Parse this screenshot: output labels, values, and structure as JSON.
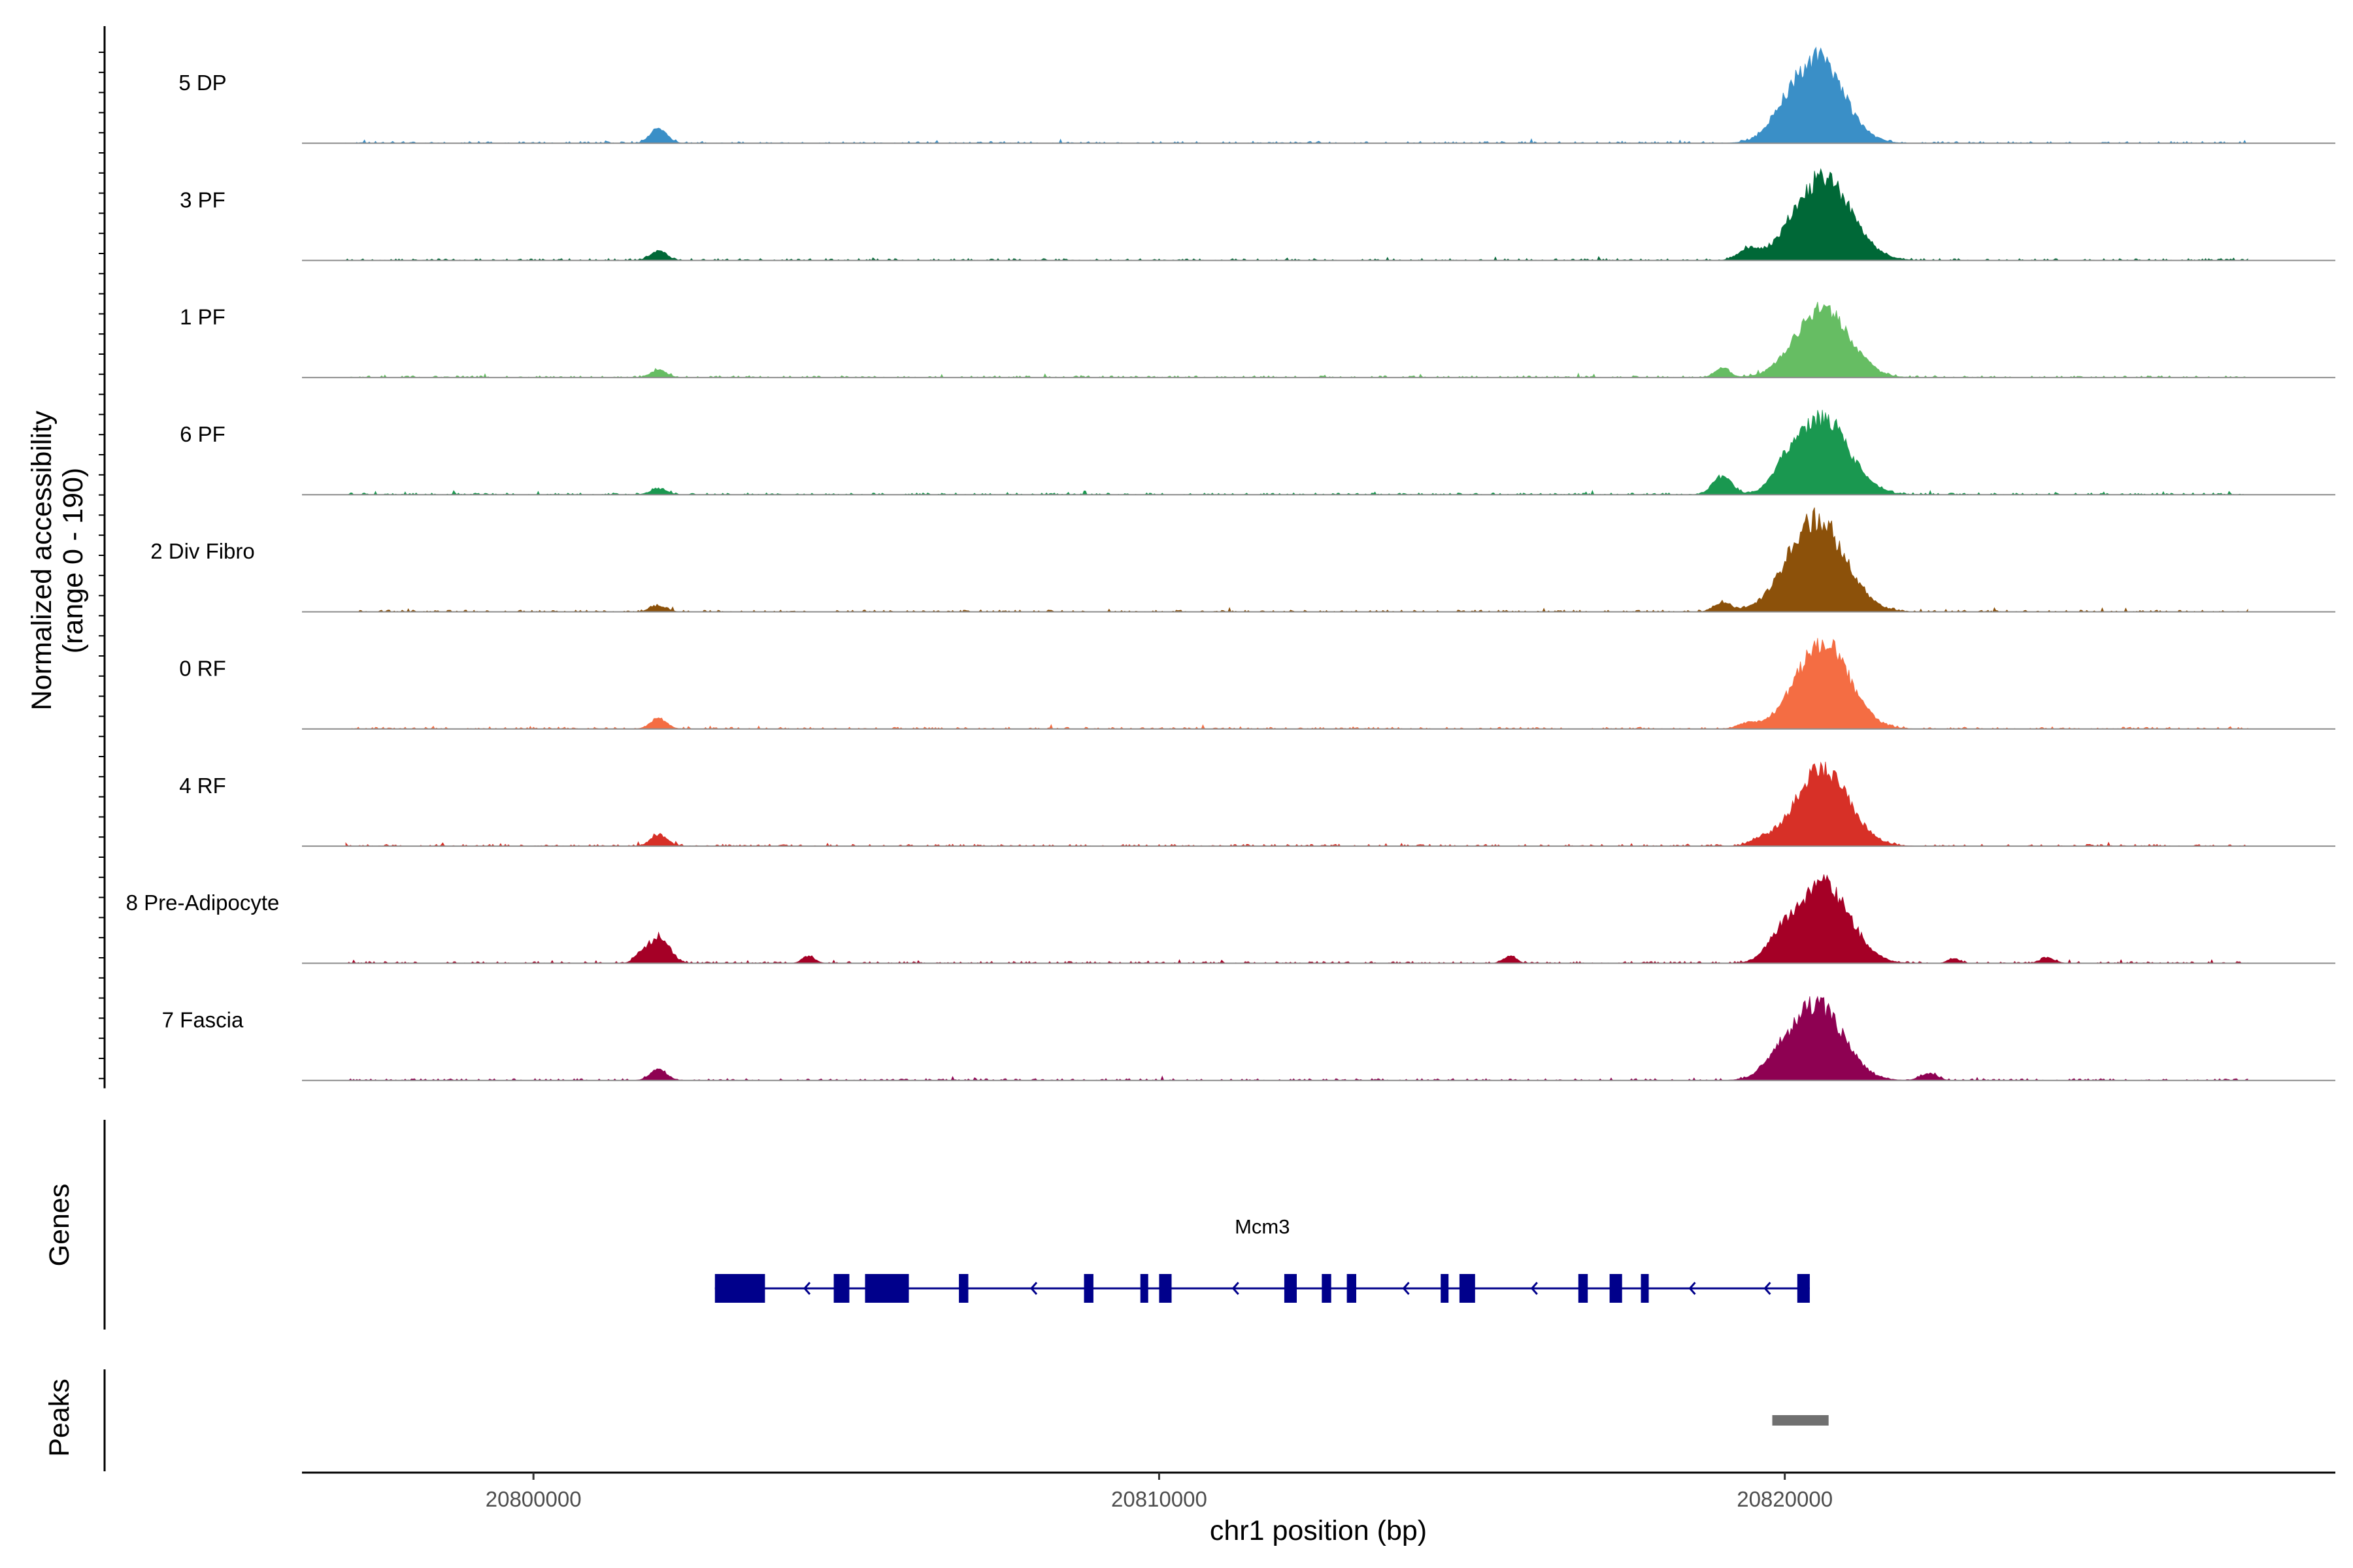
{
  "chart_data": {
    "type": "area",
    "ylabel_line1": "Normalized accessibility",
    "ylabel_line2": "(range 0 - 190)",
    "ylim": [
      0,
      190
    ],
    "xlabel": "chr1 position (bp)",
    "xlim": [
      20796300,
      20828800
    ],
    "x_ticks": [
      {
        "value": 20800000,
        "label": "20800000"
      },
      {
        "value": 20810000,
        "label": "20810000"
      },
      {
        "value": 20820000,
        "label": "20820000"
      }
    ],
    "tracks": [
      {
        "name": "5 DP",
        "color": "#3A8FC7",
        "peaks": [
          [
            20802000,
            30,
            130
          ],
          [
            20820500,
            170,
            420
          ],
          [
            20819900,
            12,
            150
          ]
        ]
      },
      {
        "name": "3 PF",
        "color": "#006837",
        "peaks": [
          [
            20802000,
            18,
            130
          ],
          [
            20820600,
            160,
            450
          ],
          [
            20819400,
            20,
            150
          ]
        ]
      },
      {
        "name": "1 PF",
        "color": "#66BD63",
        "peaks": [
          [
            20802000,
            14,
            130
          ],
          [
            20820600,
            140,
            420
          ],
          [
            20819000,
            18,
            120
          ]
        ]
      },
      {
        "name": "6 PF",
        "color": "#1A9850",
        "peaks": [
          [
            20802000,
            12,
            130
          ],
          [
            20820600,
            150,
            420
          ],
          [
            20819000,
            36,
            150
          ],
          [
            20820000,
            30,
            180
          ]
        ]
      },
      {
        "name": "2 Div Fibro",
        "color": "#8C510A",
        "peaks": [
          [
            20802000,
            12,
            130
          ],
          [
            20820500,
            180,
            450
          ],
          [
            20819000,
            18,
            130
          ]
        ]
      },
      {
        "name": "0 RF",
        "color": "#F46D43",
        "peaks": [
          [
            20802000,
            20,
            130
          ],
          [
            20820600,
            170,
            420
          ],
          [
            20819400,
            10,
            150
          ]
        ]
      },
      {
        "name": "4 RF",
        "color": "#D73027",
        "peaks": [
          [
            20802000,
            22,
            130
          ],
          [
            20820600,
            150,
            420
          ],
          [
            20819600,
            10,
            150
          ]
        ]
      },
      {
        "name": "8 Pre-Adipocyte",
        "color": "#A50026",
        "peaks": [
          [
            20802000,
            50,
            170
          ],
          [
            20820600,
            160,
            420
          ],
          [
            20801700,
            12,
            100
          ],
          [
            20804400,
            14,
            100
          ],
          [
            20815600,
            14,
            100
          ],
          [
            20819900,
            30,
            200
          ],
          [
            20822700,
            10,
            90
          ],
          [
            20824200,
            10,
            120
          ]
        ]
      },
      {
        "name": "7 Fascia",
        "color": "#8E0152",
        "peaks": [
          [
            20802000,
            22,
            130
          ],
          [
            20820500,
            150,
            420
          ],
          [
            20819800,
            16,
            200
          ],
          [
            20822300,
            14,
            130
          ]
        ]
      }
    ],
    "gene": {
      "name": "Mcm3",
      "color": "#00008B",
      "start": 20802900,
      "end": 20820400,
      "exons": [
        [
          20802900,
          20803700
        ],
        [
          20804800,
          20805050
        ],
        [
          20805300,
          20806000
        ],
        [
          20806800,
          20806950
        ],
        [
          20808800,
          20808950
        ],
        [
          20809700,
          20809800
        ],
        [
          20810000,
          20810200
        ],
        [
          20812000,
          20812200
        ],
        [
          20812600,
          20812750
        ],
        [
          20813000,
          20813150
        ],
        [
          20814500,
          20814600
        ],
        [
          20814800,
          20815050
        ],
        [
          20816700,
          20816850
        ],
        [
          20817200,
          20817400
        ],
        [
          20817700,
          20817800
        ],
        [
          20820200,
          20820400
        ]
      ],
      "strand": "-"
    },
    "peak_regions": [
      [
        20819800,
        20820700
      ]
    ],
    "peak_color": "#707070",
    "panel_labels": {
      "genes": "Genes",
      "peaks": "Peaks"
    }
  }
}
